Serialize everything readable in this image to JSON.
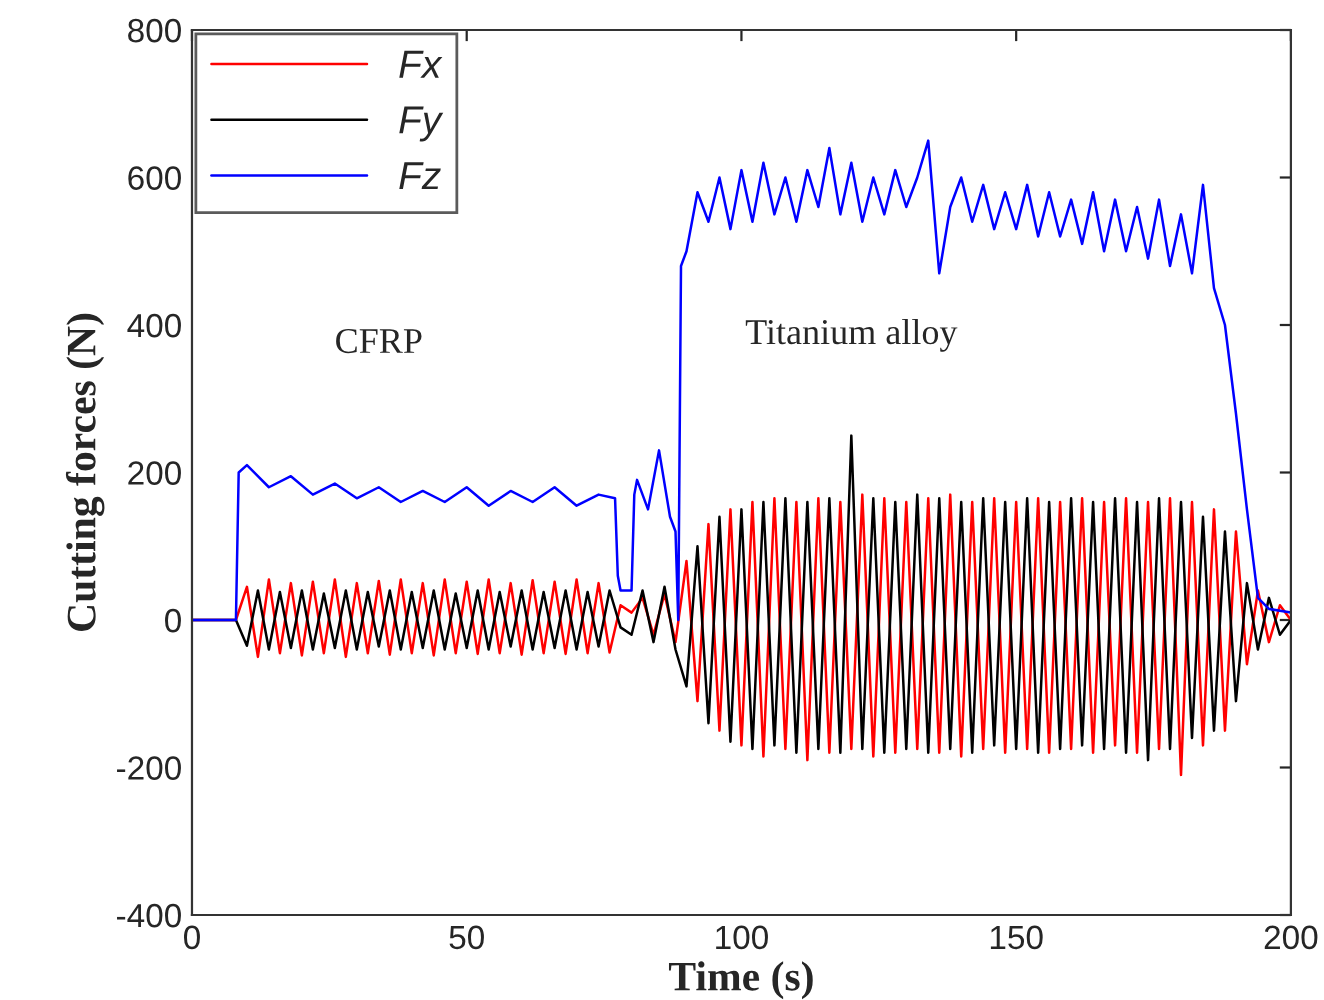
{
  "chart_data": {
    "type": "line",
    "xlabel": "Time (s)",
    "ylabel": "Cutting forces (N)",
    "xlim": [
      0,
      200
    ],
    "xticks": [
      0,
      50,
      100,
      150,
      200
    ],
    "ylim": [
      -400,
      800
    ],
    "yticks": [
      -400,
      -200,
      0,
      200,
      400,
      600,
      800
    ],
    "grid": false,
    "legend": "top left",
    "annotations": [
      "CFRP",
      "Titanium alloy"
    ],
    "series": [
      {
        "name": "Fx",
        "color": "#ff0000",
        "x": [
          0,
          5,
          8,
          10,
          12,
          14,
          16,
          18,
          20,
          22,
          24,
          26,
          28,
          30,
          32,
          34,
          36,
          38,
          40,
          42,
          44,
          46,
          48,
          50,
          52,
          54,
          56,
          58,
          60,
          62,
          64,
          66,
          68,
          70,
          72,
          74,
          76,
          78,
          80,
          82,
          84,
          86,
          88,
          90,
          92,
          94,
          96,
          98,
          100,
          102,
          104,
          106,
          108,
          110,
          112,
          114,
          116,
          118,
          120,
          122,
          124,
          126,
          128,
          130,
          132,
          134,
          136,
          138,
          140,
          142,
          144,
          146,
          148,
          150,
          152,
          154,
          156,
          158,
          160,
          162,
          164,
          166,
          168,
          170,
          172,
          174,
          176,
          178,
          180,
          182,
          184,
          186,
          188,
          190,
          192,
          194,
          196,
          198,
          200
        ],
        "values": [
          0,
          0,
          0,
          45,
          -50,
          55,
          -45,
          50,
          -48,
          52,
          -45,
          55,
          -50,
          50,
          -45,
          53,
          -47,
          55,
          -45,
          50,
          -48,
          55,
          -45,
          52,
          -46,
          55,
          -45,
          50,
          -47,
          54,
          -45,
          52,
          -46,
          55,
          -45,
          50,
          -44,
          20,
          10,
          30,
          -20,
          35,
          -30,
          80,
          -110,
          130,
          -150,
          150,
          -170,
          160,
          -185,
          165,
          -175,
          160,
          -190,
          165,
          -180,
          160,
          -175,
          170,
          -185,
          165,
          -180,
          160,
          -175,
          165,
          -180,
          170,
          -185,
          160,
          -175,
          165,
          -180,
          160,
          -175,
          165,
          -180,
          160,
          -175,
          165,
          -180,
          160,
          -170,
          165,
          -180,
          160,
          -175,
          165,
          -210,
          160,
          -170,
          150,
          -150,
          120,
          -60,
          40,
          -30,
          20,
          0
        ]
      },
      {
        "name": "Fy",
        "color": "#000000",
        "x": [
          0,
          5,
          8,
          10,
          12,
          14,
          16,
          18,
          20,
          22,
          24,
          26,
          28,
          30,
          32,
          34,
          36,
          38,
          40,
          42,
          44,
          46,
          48,
          50,
          52,
          54,
          56,
          58,
          60,
          62,
          64,
          66,
          68,
          70,
          72,
          74,
          76,
          78,
          80,
          82,
          84,
          86,
          88,
          90,
          92,
          94,
          96,
          98,
          100,
          102,
          104,
          106,
          108,
          110,
          112,
          114,
          116,
          118,
          120,
          122,
          124,
          126,
          128,
          130,
          132,
          134,
          136,
          138,
          140,
          142,
          144,
          146,
          148,
          150,
          152,
          154,
          156,
          158,
          160,
          162,
          164,
          166,
          168,
          170,
          172,
          174,
          176,
          178,
          180,
          182,
          184,
          186,
          188,
          190,
          192,
          194,
          196,
          198,
          200
        ],
        "values": [
          0,
          0,
          0,
          -35,
          40,
          -40,
          38,
          -38,
          40,
          -40,
          36,
          -38,
          40,
          -40,
          38,
          -36,
          40,
          -40,
          38,
          -38,
          40,
          -40,
          36,
          -38,
          40,
          -40,
          38,
          -36,
          40,
          -40,
          38,
          -38,
          40,
          -40,
          38,
          -36,
          40,
          -10,
          -20,
          40,
          -30,
          45,
          -40,
          -90,
          100,
          -140,
          140,
          -165,
          150,
          -175,
          160,
          -170,
          165,
          -180,
          160,
          -175,
          165,
          -180,
          250,
          -175,
          165,
          -180,
          160,
          -175,
          170,
          -180,
          165,
          -175,
          160,
          -180,
          165,
          -170,
          160,
          -175,
          165,
          -180,
          160,
          -175,
          165,
          -170,
          160,
          -175,
          165,
          -180,
          160,
          -190,
          165,
          -175,
          160,
          -160,
          140,
          -150,
          120,
          -110,
          50,
          -40,
          30,
          -20,
          0
        ]
      },
      {
        "name": "Fz",
        "color": "#0000ff",
        "x": [
          0,
          8,
          8.5,
          10,
          14,
          18,
          22,
          26,
          30,
          34,
          38,
          42,
          46,
          50,
          54,
          58,
          62,
          66,
          70,
          74,
          77,
          77.5,
          78,
          80,
          80.5,
          81,
          83,
          85,
          87,
          88,
          88.5,
          89,
          90,
          92,
          94,
          96,
          98,
          100,
          102,
          104,
          106,
          108,
          110,
          112,
          114,
          116,
          118,
          120,
          122,
          124,
          126,
          128,
          130,
          132,
          134,
          136,
          138,
          140,
          142,
          144,
          146,
          148,
          150,
          152,
          154,
          156,
          158,
          160,
          162,
          164,
          166,
          168,
          170,
          172,
          174,
          176,
          178,
          180,
          182,
          184,
          186,
          188,
          190,
          192,
          194,
          196,
          200
        ],
        "values": [
          0,
          0,
          200,
          210,
          180,
          195,
          170,
          185,
          165,
          180,
          160,
          175,
          160,
          180,
          155,
          175,
          160,
          180,
          155,
          170,
          165,
          60,
          40,
          40,
          170,
          190,
          150,
          230,
          140,
          120,
          0,
          480,
          500,
          580,
          540,
          600,
          530,
          610,
          540,
          620,
          550,
          600,
          540,
          610,
          560,
          640,
          550,
          620,
          540,
          600,
          550,
          610,
          560,
          600,
          650,
          470,
          560,
          600,
          540,
          590,
          530,
          580,
          530,
          590,
          520,
          580,
          520,
          570,
          510,
          580,
          500,
          570,
          500,
          560,
          490,
          570,
          480,
          550,
          470,
          590,
          450,
          400,
          280,
          150,
          30,
          15,
          10
        ]
      }
    ]
  }
}
